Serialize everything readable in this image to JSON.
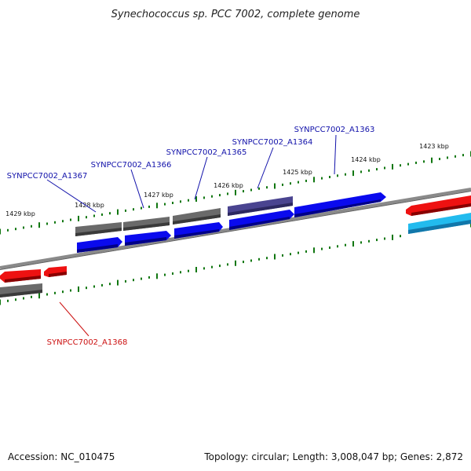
{
  "title": "Synechococcus sp. PCC 7002, complete genome",
  "footer": {
    "accession": "Accession: NC_010475",
    "summary": "Topology: circular; Length: 3,008,047 bp; Genes: 2,872"
  },
  "colors": {
    "forward_cds": "#0a0aee",
    "forward_gene": "#646464",
    "highlight": "#4a4490",
    "reverse_cds": "#ee1111",
    "rna": "#22bbee",
    "tick": "#117711",
    "backbone": "#8a8a8a",
    "label_forward": "#1111aa",
    "label_reverse": "#cc1111"
  },
  "ticks": {
    "labels": [
      "1423 kbp",
      "1424 kbp",
      "1425 kbp",
      "1426 kbp",
      "1427 kbp",
      "1428 kbp",
      "1429 kbp"
    ]
  },
  "gene_labels": {
    "a1363": "SYNPCC7002_A1363",
    "a1364": "SYNPCC7002_A1364",
    "a1365": "SYNPCC7002_A1365",
    "a1366": "SYNPCC7002_A1366",
    "a1367": "SYNPCC7002_A1367",
    "a1368": "SYNPCC7002_A1368"
  }
}
